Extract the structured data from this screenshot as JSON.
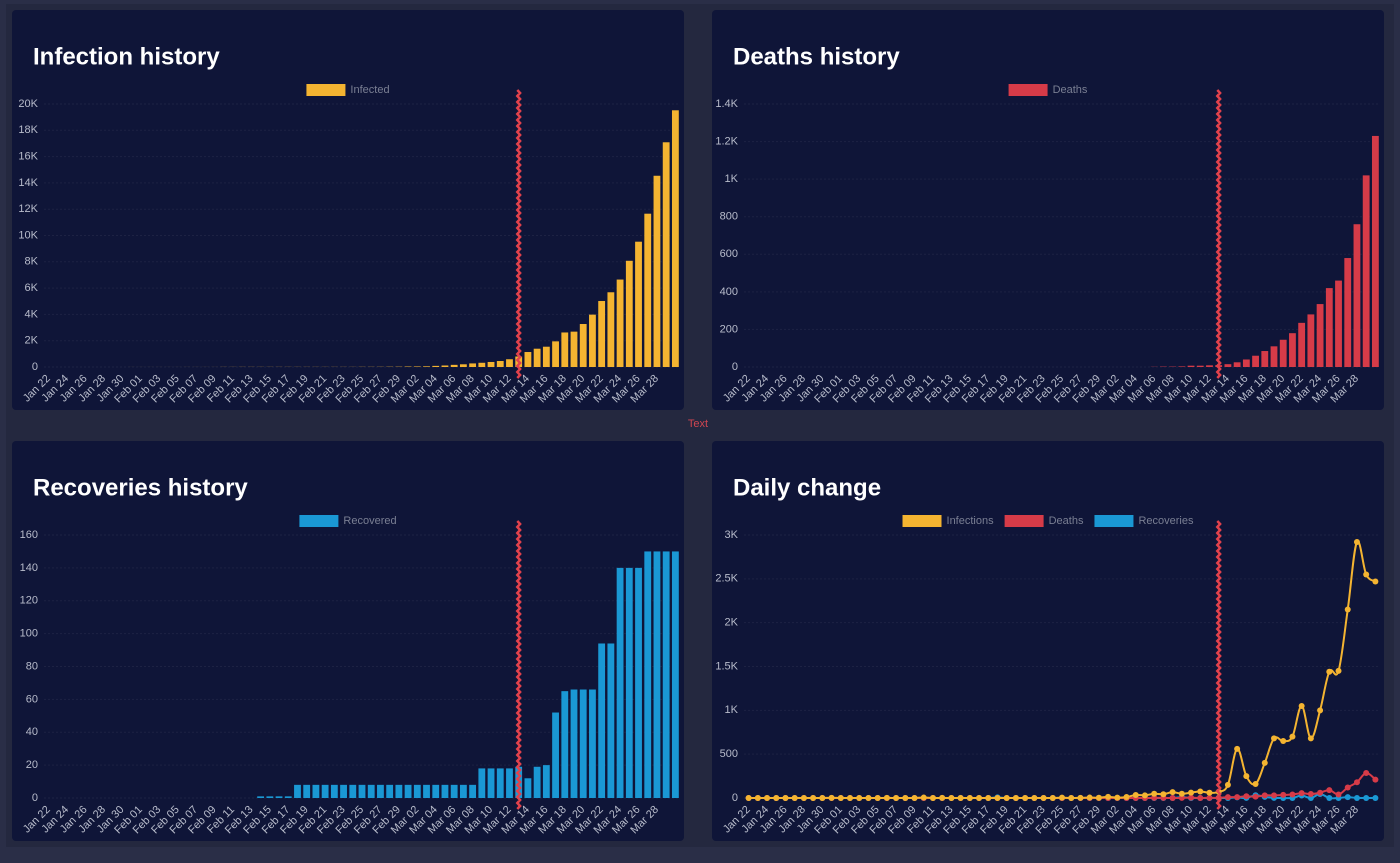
{
  "annotation_text": "Text",
  "chart_data": [
    {
      "type": "bar",
      "title": "Infection history",
      "categories": [
        "Jan 22",
        null,
        "Jan 24",
        null,
        "Jan 26",
        null,
        "Jan 28",
        null,
        "Jan 30",
        null,
        "Feb 01",
        null,
        "Feb 03",
        null,
        "Feb 05",
        null,
        "Feb 07",
        null,
        "Feb 09",
        null,
        "Feb 11",
        null,
        "Feb 13",
        null,
        "Feb 15",
        null,
        "Feb 17",
        null,
        "Feb 19",
        null,
        "Feb 21",
        null,
        "Feb 23",
        null,
        "Feb 25",
        null,
        "Feb 27",
        null,
        "Feb 29",
        null,
        "Mar 02",
        null,
        "Mar 04",
        null,
        "Mar 06",
        null,
        "Mar 08",
        null,
        "Mar 10",
        null,
        "Mar 12",
        null,
        "Mar 14",
        null,
        "Mar 16",
        null,
        "Mar 18",
        null,
        "Mar 20",
        null,
        "Mar 22",
        null,
        "Mar 24",
        null,
        "Mar 26",
        null,
        "Mar 28",
        null,
        null
      ],
      "series": [
        {
          "name": "Infected",
          "color": "#f4b431",
          "values": [
            0,
            0,
            0,
            0,
            0,
            0,
            0,
            0,
            0,
            2,
            2,
            2,
            2,
            2,
            2,
            3,
            3,
            3,
            3,
            8,
            8,
            9,
            9,
            9,
            9,
            9,
            9,
            9,
            9,
            9,
            9,
            9,
            9,
            9,
            13,
            13,
            15,
            20,
            23,
            36,
            40,
            51,
            85,
            115,
            163,
            206,
            273,
            321,
            382,
            456,
            590,
            798,
            1140,
            1391,
            1543,
            1950,
            2626,
            2689,
            3269,
            3983,
            5018,
            5683,
            6650,
            8077,
            9529,
            11658,
            14543,
            17089,
            19522
          ]
        }
      ],
      "ylim": [
        0,
        20000
      ],
      "yticks": [
        0,
        {
          "value": 2000,
          "label": "2K"
        },
        {
          "value": 4000,
          "label": "4K"
        },
        {
          "value": 6000,
          "label": "6K"
        },
        {
          "value": 8000,
          "label": "8K"
        },
        {
          "value": 10000,
          "label": "10K"
        },
        {
          "value": 12000,
          "label": "12K"
        },
        {
          "value": 14000,
          "label": "14K"
        },
        {
          "value": 16000,
          "label": "16K"
        },
        {
          "value": 18000,
          "label": "18K"
        },
        {
          "value": 20000,
          "label": "20K"
        }
      ],
      "grid": true,
      "vline": 51,
      "vline_color": "#e2424c"
    },
    {
      "type": "bar",
      "title": "Deaths history",
      "categories": [
        "Jan 22",
        null,
        "Jan 24",
        null,
        "Jan 26",
        null,
        "Jan 28",
        null,
        "Jan 30",
        null,
        "Feb 01",
        null,
        "Feb 03",
        null,
        "Feb 05",
        null,
        "Feb 07",
        null,
        "Feb 09",
        null,
        "Feb 11",
        null,
        "Feb 13",
        null,
        "Feb 15",
        null,
        "Feb 17",
        null,
        "Feb 19",
        null,
        "Feb 21",
        null,
        "Feb 23",
        null,
        "Feb 25",
        null,
        "Feb 27",
        null,
        "Feb 29",
        null,
        "Mar 02",
        null,
        "Mar 04",
        null,
        "Mar 06",
        null,
        "Mar 08",
        null,
        "Mar 10",
        null,
        "Mar 12",
        null,
        "Mar 14",
        null,
        "Mar 16",
        null,
        "Mar 18",
        null,
        "Mar 20",
        null,
        "Mar 22",
        null,
        "Mar 24",
        null,
        "Mar 26",
        null,
        "Mar 28",
        null,
        null
      ],
      "series": [
        {
          "name": "Deaths",
          "color": "#d63b48",
          "values": [
            0,
            0,
            0,
            0,
            0,
            0,
            0,
            0,
            0,
            0,
            0,
            0,
            0,
            0,
            0,
            0,
            0,
            0,
            0,
            0,
            0,
            0,
            0,
            0,
            0,
            0,
            0,
            0,
            0,
            0,
            0,
            0,
            0,
            0,
            0,
            0,
            0,
            0,
            0,
            0,
            0,
            0,
            0,
            0,
            1,
            2,
            2,
            3,
            7,
            7,
            9,
            10,
            15,
            25,
            40,
            60,
            85,
            110,
            145,
            180,
            235,
            280,
            335,
            420,
            460,
            580,
            760,
            1020,
            1230
          ]
        }
      ],
      "ylim": [
        0,
        1400
      ],
      "yticks": [
        0,
        200,
        400,
        600,
        800,
        {
          "value": 1000,
          "label": "1K"
        },
        {
          "value": 1200,
          "label": "1.2K"
        },
        {
          "value": 1400,
          "label": "1.4K"
        }
      ],
      "grid": true,
      "vline": 51,
      "vline_color": "#e2424c"
    },
    {
      "type": "bar",
      "title": "Recoveries history",
      "categories": [
        "Jan 22",
        null,
        "Jan 24",
        null,
        "Jan 26",
        null,
        "Jan 28",
        null,
        "Jan 30",
        null,
        "Feb 01",
        null,
        "Feb 03",
        null,
        "Feb 05",
        null,
        "Feb 07",
        null,
        "Feb 09",
        null,
        "Feb 11",
        null,
        "Feb 13",
        null,
        "Feb 15",
        null,
        "Feb 17",
        null,
        "Feb 19",
        null,
        "Feb 21",
        null,
        "Feb 23",
        null,
        "Feb 25",
        null,
        "Feb 27",
        null,
        "Feb 29",
        null,
        "Mar 02",
        null,
        "Mar 04",
        null,
        "Mar 06",
        null,
        "Mar 08",
        null,
        "Mar 10",
        null,
        "Mar 12",
        null,
        "Mar 14",
        null,
        "Mar 16",
        null,
        "Mar 18",
        null,
        "Mar 20",
        null,
        "Mar 22",
        null,
        "Mar 24",
        null,
        "Mar 26",
        null,
        "Mar 28",
        null,
        null
      ],
      "series": [
        {
          "name": "Recovered",
          "color": "#1a98d4",
          "values": [
            0,
            0,
            0,
            0,
            0,
            0,
            0,
            0,
            0,
            0,
            0,
            0,
            0,
            0,
            0,
            0,
            0,
            0,
            0,
            0,
            0,
            0,
            0,
            1,
            1,
            1,
            1,
            8,
            8,
            8,
            8,
            8,
            8,
            8,
            8,
            8,
            8,
            8,
            8,
            8,
            8,
            8,
            8,
            8,
            8,
            8,
            8,
            18,
            18,
            18,
            18,
            19,
            12,
            19,
            20,
            52,
            65,
            66,
            66,
            66,
            94,
            94,
            140,
            140,
            140,
            150,
            150,
            150,
            150
          ]
        }
      ],
      "ylim": [
        0,
        160
      ],
      "yticks": [
        0,
        20,
        40,
        60,
        80,
        100,
        120,
        140,
        160
      ],
      "grid": true,
      "vline": 51,
      "vline_color": "#e2424c"
    },
    {
      "type": "line",
      "title": "Daily change",
      "categories": [
        "Jan 22",
        null,
        "Jan 24",
        null,
        "Jan 26",
        null,
        "Jan 28",
        null,
        "Jan 30",
        null,
        "Feb 01",
        null,
        "Feb 03",
        null,
        "Feb 05",
        null,
        "Feb 07",
        null,
        "Feb 09",
        null,
        "Feb 11",
        null,
        "Feb 13",
        null,
        "Feb 15",
        null,
        "Feb 17",
        null,
        "Feb 19",
        null,
        "Feb 21",
        null,
        "Feb 23",
        null,
        "Feb 25",
        null,
        "Feb 27",
        null,
        "Feb 29",
        null,
        "Mar 02",
        null,
        "Mar 04",
        null,
        "Mar 06",
        null,
        "Mar 08",
        null,
        "Mar 10",
        null,
        "Mar 12",
        null,
        "Mar 14",
        null,
        "Mar 16",
        null,
        "Mar 18",
        null,
        "Mar 20",
        null,
        "Mar 22",
        null,
        "Mar 24",
        null,
        "Mar 26",
        null,
        "Mar 28",
        null,
        null
      ],
      "series": [
        {
          "name": "Infections",
          "color": "#f4b431",
          "values": [
            0,
            0,
            0,
            0,
            0,
            0,
            0,
            0,
            0,
            2,
            0,
            0,
            0,
            0,
            0,
            1,
            0,
            0,
            0,
            5,
            0,
            1,
            0,
            0,
            0,
            0,
            0,
            0,
            0,
            0,
            0,
            0,
            0,
            0,
            4,
            0,
            2,
            5,
            3,
            13,
            4,
            11,
            34,
            30,
            48,
            43,
            67,
            48,
            61,
            74,
            60,
            70,
            150,
            560,
            250,
            160,
            400,
            680,
            650,
            700,
            1050,
            680,
            1000,
            1440,
            1450,
            2150,
            2920,
            2550,
            2470
          ]
        },
        {
          "name": "Deaths",
          "color": "#d63b48",
          "values": [
            0,
            0,
            0,
            0,
            0,
            0,
            0,
            0,
            0,
            0,
            0,
            0,
            0,
            0,
            0,
            0,
            0,
            0,
            0,
            0,
            0,
            0,
            0,
            0,
            0,
            0,
            0,
            0,
            0,
            0,
            0,
            0,
            0,
            0,
            0,
            0,
            0,
            0,
            0,
            0,
            0,
            0,
            0,
            0,
            1,
            1,
            0,
            1,
            4,
            0,
            2,
            1,
            10,
            10,
            20,
            15,
            30,
            30,
            35,
            40,
            55,
            45,
            60,
            90,
            40,
            120,
            180,
            285,
            210
          ]
        },
        {
          "name": "Recoveries",
          "color": "#1a98d4",
          "values": [
            0,
            0,
            0,
            0,
            0,
            0,
            0,
            0,
            0,
            0,
            0,
            0,
            0,
            0,
            0,
            0,
            0,
            0,
            0,
            0,
            0,
            0,
            0,
            1,
            0,
            0,
            0,
            7,
            0,
            0,
            0,
            0,
            0,
            0,
            0,
            0,
            0,
            0,
            0,
            0,
            0,
            0,
            0,
            0,
            0,
            0,
            0,
            10,
            0,
            0,
            0,
            1,
            0,
            7,
            1,
            32,
            13,
            1,
            0,
            0,
            28,
            0,
            46,
            0,
            0,
            10,
            0,
            0,
            0
          ]
        }
      ],
      "ylim": [
        0,
        3000
      ],
      "yticks": [
        0,
        500,
        {
          "value": 1000,
          "label": "1K"
        },
        {
          "value": 1500,
          "label": "1.5K"
        },
        {
          "value": 2000,
          "label": "2K"
        },
        {
          "value": 2500,
          "label": "2.5K"
        },
        {
          "value": 3000,
          "label": "3K"
        }
      ],
      "grid": true,
      "vline": 51,
      "vline_color": "#e2424c"
    }
  ]
}
